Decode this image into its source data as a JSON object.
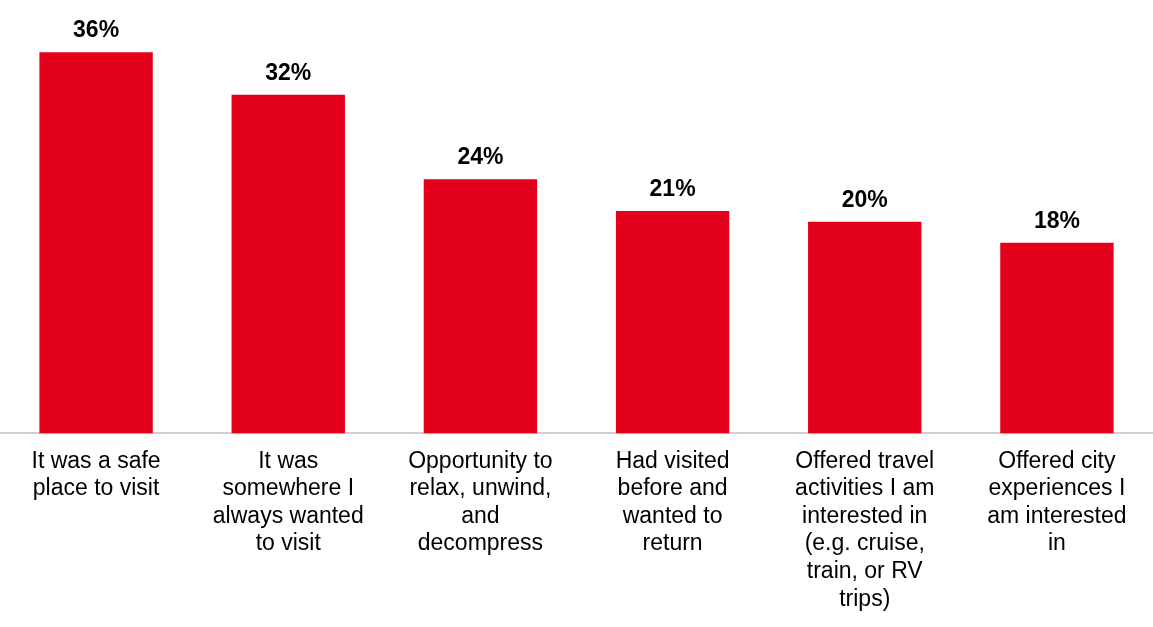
{
  "chart_data": {
    "type": "bar",
    "categories": [
      "It was a safe place to visit",
      "It was somewhere I always wanted to visit",
      "Opportunity to relax, unwind, and decompress",
      "Had visited before and wanted to return",
      "Offered travel activities I am interested in (e.g. cruise, train, or RV trips)",
      "Offered city experiences I am interested in"
    ],
    "values": [
      36,
      32,
      24,
      21,
      20,
      18
    ],
    "value_labels": [
      "36%",
      "32%",
      "24%",
      "21%",
      "20%",
      "18%"
    ],
    "color": "#e3001b",
    "tick_labels": "x",
    "grid": false,
    "legend": false
  }
}
